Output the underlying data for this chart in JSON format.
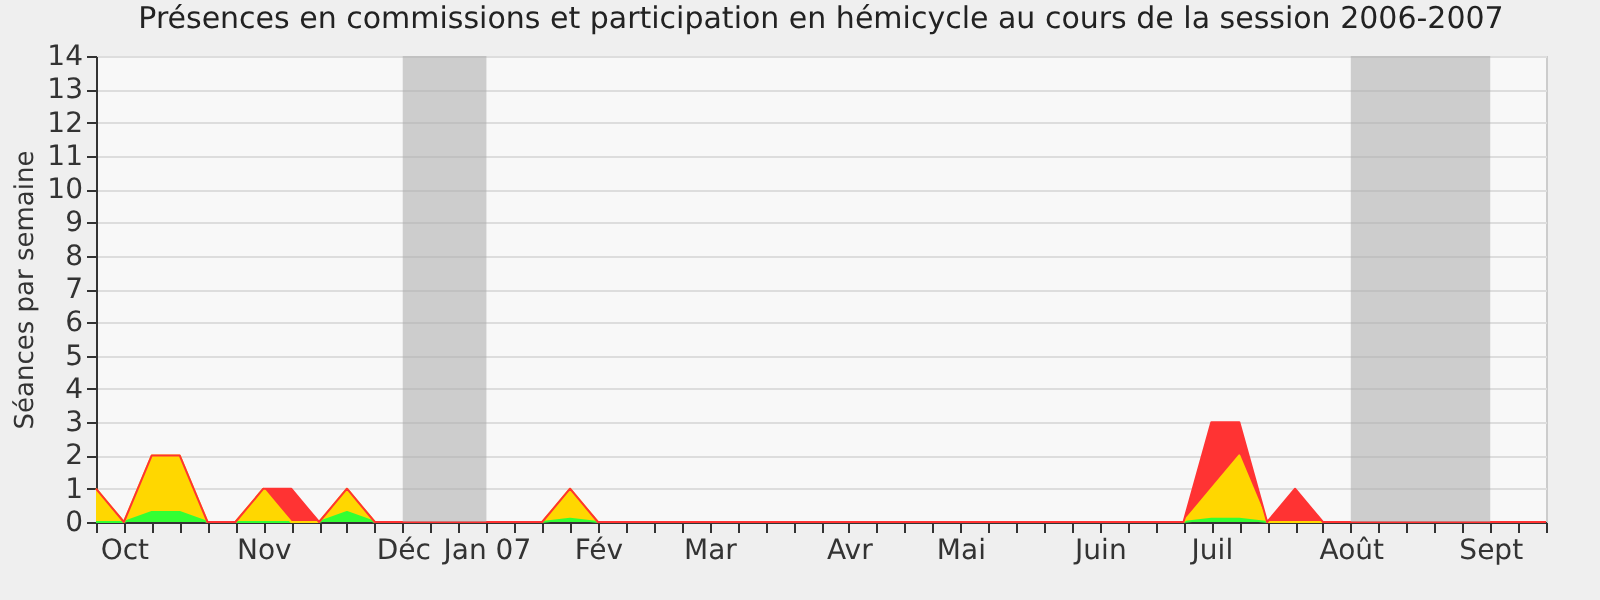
{
  "chart_data": {
    "type": "area",
    "stacked": true,
    "title": "Présences en commissions et participation en hémicycle au cours de la session 2006-2007",
    "ylabel": "Séances par semaine",
    "categories": [
      null,
      "Oct",
      null,
      null,
      null,
      null,
      "Nov",
      null,
      null,
      null,
      null,
      "Déc",
      null,
      null,
      "Jan 07",
      null,
      null,
      null,
      "Fév",
      null,
      null,
      null,
      "Mar",
      null,
      null,
      null,
      null,
      "Avr",
      null,
      null,
      null,
      "Mai",
      null,
      null,
      null,
      null,
      "Juin",
      null,
      null,
      null,
      "Juil",
      null,
      null,
      null,
      null,
      "Août",
      null,
      null,
      null,
      null,
      "Sept",
      null,
      null
    ],
    "series": [
      {
        "color": "#33ff33",
        "values": [
          0,
          0,
          0.3,
          0.3,
          0,
          0,
          0,
          0,
          0,
          0.3,
          0,
          0,
          0,
          0,
          0,
          0,
          0,
          0.1,
          0,
          0,
          0,
          0,
          0,
          0,
          0,
          0,
          0,
          0,
          0,
          0,
          0,
          0,
          0,
          0,
          0,
          0,
          0,
          0,
          0,
          0,
          0.1,
          0.1,
          0,
          0,
          0,
          0,
          0,
          0,
          0,
          0,
          0,
          0,
          0
        ]
      },
      {
        "color": "#ffd700",
        "values": [
          1,
          0,
          1.7,
          1.7,
          0,
          0,
          1,
          0,
          0,
          0.7,
          0,
          0,
          0,
          0,
          0,
          0,
          0,
          0.9,
          0,
          0,
          0,
          0,
          0,
          0,
          0,
          0,
          0,
          0,
          0,
          0,
          0,
          0,
          0,
          0,
          0,
          0,
          0,
          0,
          0,
          0,
          0.9,
          1.9,
          0,
          0,
          0,
          0,
          0,
          0,
          0,
          0,
          0,
          0,
          0
        ]
      },
      {
        "color": "#ff3333",
        "values": [
          0,
          0,
          0,
          0,
          0,
          0,
          0,
          1,
          0,
          0,
          0,
          0,
          0,
          0,
          0,
          0,
          0,
          0,
          0,
          0,
          0,
          0,
          0,
          0,
          0,
          0,
          0,
          0,
          0,
          0,
          0,
          0,
          0,
          0,
          0,
          0,
          0,
          0,
          0,
          0,
          2,
          1,
          0,
          1,
          0,
          0,
          0,
          0,
          0,
          0,
          0,
          0,
          0
        ]
      }
    ],
    "ylim": [
      0,
      14
    ],
    "yticks": [
      0,
      1,
      2,
      3,
      4,
      5,
      6,
      7,
      8,
      9,
      10,
      11,
      12,
      13,
      14
    ],
    "grid": "y",
    "bands": [
      {
        "axis": "x",
        "from": "Déc",
        "to": "Jan 07",
        "color": "#aaaaaa"
      },
      {
        "axis": "x",
        "from": "Août",
        "to": "Sept",
        "color": "#aaaaaa"
      }
    ]
  }
}
